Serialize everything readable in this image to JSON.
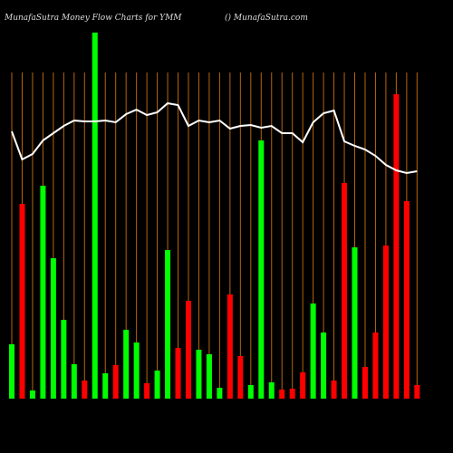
{
  "chart_data": {
    "type": "bar-line",
    "title": "MunafaSutra  Money Flow  Charts for YMM",
    "subtitle": "() MunafaSutra.com",
    "categories": [
      null,
      null,
      null,
      null,
      null,
      null,
      null,
      null,
      null,
      null,
      null,
      null,
      null,
      null,
      null,
      null,
      null,
      null,
      null,
      null,
      null,
      null,
      null,
      null,
      null,
      null,
      null,
      null,
      null,
      null,
      null,
      null,
      null,
      null,
      null,
      null,
      null,
      null,
      null,
      null
    ],
    "values": [
      60,
      215,
      9,
      235,
      155,
      87,
      38,
      20,
      404,
      28,
      37,
      76,
      62,
      17,
      31,
      164,
      56,
      108,
      54,
      49,
      12,
      115,
      47,
      15,
      285,
      18,
      10,
      11,
      29,
      105,
      73,
      20,
      238,
      167,
      35,
      73,
      169,
      336,
      218,
      15
    ],
    "bar_colors": [
      "#00ff00",
      "#ff0000",
      "#00ff00",
      "#00ff00",
      "#00ff00",
      "#00ff00",
      "#00ff00",
      "#ff0000",
      "#00ff00",
      "#00ff00",
      "#ff0000",
      "#00ff00",
      "#00ff00",
      "#ff0000",
      "#00ff00",
      "#00ff00",
      "#ff0000",
      "#ff0000",
      "#00ff00",
      "#00ff00",
      "#00ff00",
      "#ff0000",
      "#ff0000",
      "#00ff00",
      "#00ff00",
      "#00ff00",
      "#ff0000",
      "#ff0000",
      "#ff0000",
      "#00ff00",
      "#00ff00",
      "#ff0000",
      "#ff0000",
      "#00ff00",
      "#ff0000",
      "#ff0000",
      "#ff0000",
      "#ff0000",
      "#ff0000",
      "#ff0000"
    ],
    "line_values": [
      295,
      264,
      270,
      285,
      293,
      301,
      307,
      306,
      306,
      307,
      305,
      314,
      319,
      313,
      316,
      326,
      324,
      301,
      307,
      305,
      307,
      298,
      301,
      302,
      299,
      301,
      293,
      293,
      283,
      305,
      315,
      318,
      284,
      279,
      275,
      268,
      258,
      252,
      249,
      251
    ],
    "line_color": "#ffffff",
    "gridline_color": "#b8650a",
    "ylim": [
      0,
      404
    ]
  }
}
